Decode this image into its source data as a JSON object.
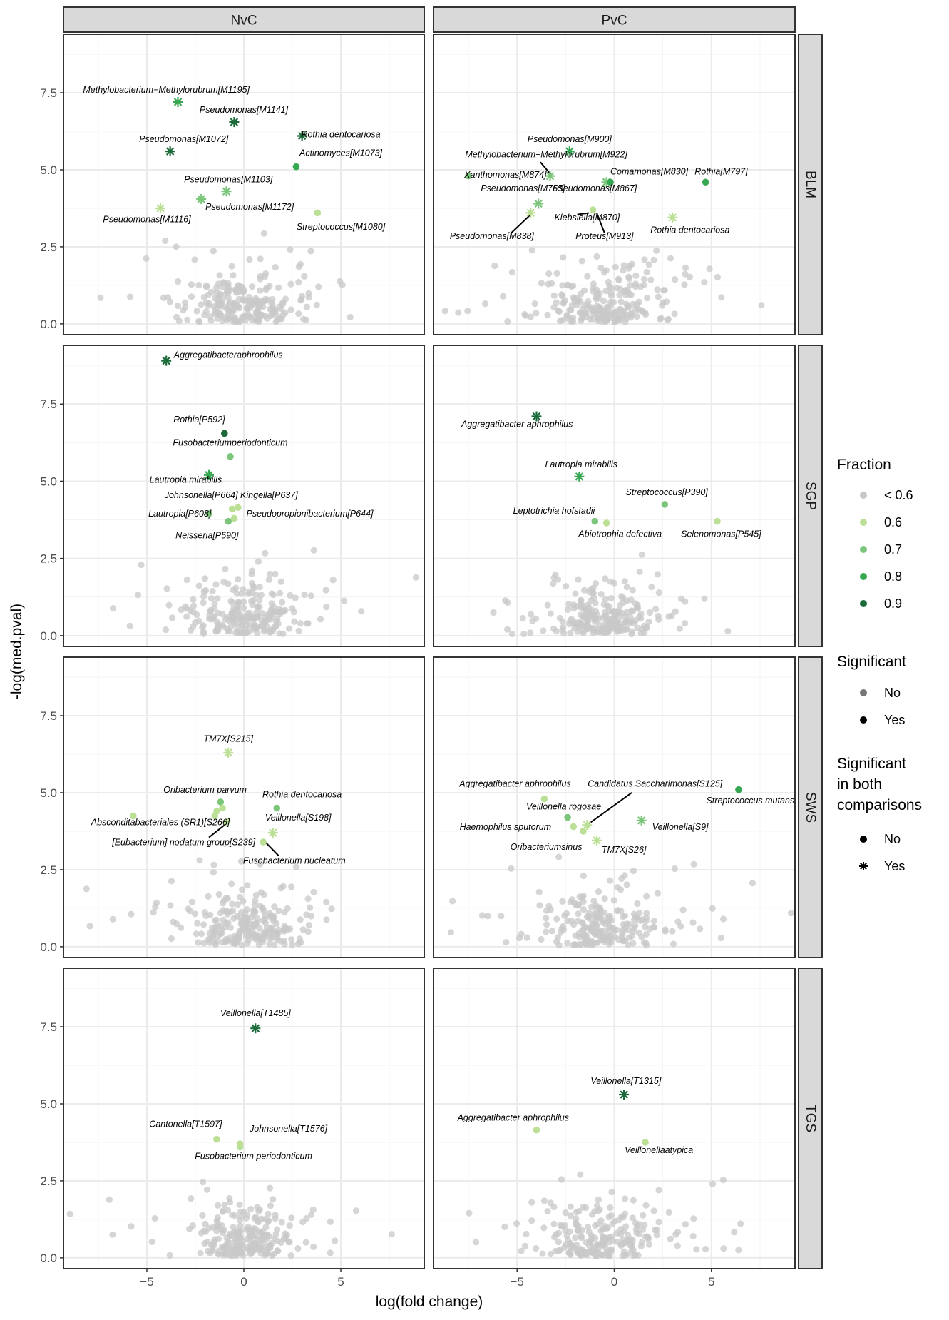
{
  "chart_data": {
    "type": "scatter",
    "title": "",
    "xlabel": "log(fold change)",
    "ylabel": "-log(med.pval)",
    "xlim": [
      -9.3,
      9.3
    ],
    "ylim": [
      -0.35,
      9.4
    ],
    "xticks": [
      -5,
      0,
      5
    ],
    "yticks": [
      0.0,
      2.5,
      5.0,
      7.5
    ],
    "xtick_labels": [
      "−5",
      "0",
      "5"
    ],
    "ytick_labels": [
      "0.0",
      "2.5",
      "5.0",
      "7.5"
    ],
    "columns": [
      "NvC",
      "PvC"
    ],
    "rows": [
      "BLM",
      "SGP",
      "SWS",
      "TGS"
    ],
    "grid": true,
    "colors": {
      "nonsig": "#c8c8c8",
      "f06": "#bcdf96",
      "f07": "#7cc67c",
      "f08": "#36a852",
      "f09": "#1b6a3a",
      "strip_bg": "#d9d9d9",
      "grid": "#ebebeb"
    },
    "legend": {
      "position": "right",
      "fraction_title": "Fraction",
      "fraction_items": [
        {
          "label": "< 0.6",
          "color": "nonsig"
        },
        {
          "label": "0.6",
          "color": "f06"
        },
        {
          "label": "0.7",
          "color": "f07"
        },
        {
          "label": "0.8",
          "color": "f08"
        },
        {
          "label": "0.9",
          "color": "f09"
        }
      ],
      "significant_title": "Significant",
      "significant_items": [
        "No",
        "Yes"
      ],
      "both_title_lines": [
        "Significant",
        "in both",
        "comparisons"
      ],
      "both_items": [
        {
          "label": "No",
          "shape": "dot"
        },
        {
          "label": "Yes",
          "shape": "star"
        }
      ]
    },
    "panels": [
      {
        "row": "BLM",
        "col": "NvC",
        "seed": 11,
        "points": [
          {
            "x": -3.4,
            "y": 7.2,
            "c": "f08",
            "s": "star"
          },
          {
            "x": -0.5,
            "y": 6.55,
            "c": "f09",
            "s": "star"
          },
          {
            "x": 3.0,
            "y": 6.1,
            "c": "f09",
            "s": "star"
          },
          {
            "x": -3.8,
            "y": 5.6,
            "c": "f09",
            "s": "star"
          },
          {
            "x": 2.7,
            "y": 5.1,
            "c": "f08",
            "s": "dot"
          },
          {
            "x": -0.9,
            "y": 4.3,
            "c": "f07",
            "s": "star"
          },
          {
            "x": -2.2,
            "y": 4.05,
            "c": "f07",
            "s": "star"
          },
          {
            "x": -4.3,
            "y": 3.75,
            "c": "f06",
            "s": "star"
          },
          {
            "x": 3.8,
            "y": 3.6,
            "c": "f06",
            "s": "dot"
          }
        ],
        "labels": [
          {
            "x": -4.0,
            "y": 7.5,
            "text": "Methylobacterium−Methylorubrum[M1195]"
          },
          {
            "x": 0.0,
            "y": 6.85,
            "text": "Pseudomonas[M1141]"
          },
          {
            "x": 5.0,
            "y": 6.05,
            "text": "Rothia dentocariosa"
          },
          {
            "x": -3.1,
            "y": 5.9,
            "text": "Pseudomonas[M1072]"
          },
          {
            "x": 5.0,
            "y": 5.45,
            "text": "Actinomyces[M1073]"
          },
          {
            "x": -0.8,
            "y": 4.6,
            "text": "Pseudomonas[M1103]"
          },
          {
            "x": 0.3,
            "y": 3.7,
            "text": "Pseudomonas[M1172]"
          },
          {
            "x": -5.0,
            "y": 3.3,
            "text": "Pseudomonas[M1116]"
          },
          {
            "x": 5.0,
            "y": 3.05,
            "text": "Streptococcus[M1080]"
          }
        ]
      },
      {
        "row": "BLM",
        "col": "PvC",
        "seed": 22,
        "points": [
          {
            "x": -2.3,
            "y": 5.6,
            "c": "f08",
            "s": "star"
          },
          {
            "x": -3.3,
            "y": 4.8,
            "c": "f07",
            "s": "star"
          },
          {
            "x": -7.5,
            "y": 4.8,
            "c": "f07",
            "s": "dot"
          },
          {
            "x": -0.4,
            "y": 4.6,
            "c": "f07",
            "s": "star"
          },
          {
            "x": -0.2,
            "y": 4.6,
            "c": "f08",
            "s": "dot"
          },
          {
            "x": 4.7,
            "y": 4.6,
            "c": "f08",
            "s": "dot"
          },
          {
            "x": -3.9,
            "y": 3.9,
            "c": "f07",
            "s": "star"
          },
          {
            "x": -4.3,
            "y": 3.6,
            "c": "f06",
            "s": "star"
          },
          {
            "x": -1.1,
            "y": 3.7,
            "c": "f06",
            "s": "dot"
          },
          {
            "x": 3.0,
            "y": 3.45,
            "c": "f06",
            "s": "star"
          }
        ],
        "labels": [
          {
            "x": -2.3,
            "y": 5.9,
            "text": "Pseudomonas[M900]"
          },
          {
            "x": -3.5,
            "y": 5.4,
            "text": "Methylobacterium−Methylorubrum[M922]"
          },
          {
            "x": -5.6,
            "y": 4.75,
            "text": "Xanthomonas[M874]"
          },
          {
            "x": 1.8,
            "y": 4.85,
            "text": "Comamonas[M830]"
          },
          {
            "x": 5.5,
            "y": 4.85,
            "text": "Rothia[M797]"
          },
          {
            "x": -4.7,
            "y": 4.3,
            "text": "Pseudomonas[M765]"
          },
          {
            "x": -1.0,
            "y": 4.3,
            "text": "Pseudomonas[M867]"
          },
          {
            "x": -1.4,
            "y": 3.35,
            "text": "Klebsiella[M870]"
          },
          {
            "x": 3.9,
            "y": 2.95,
            "text": "Rothia dentocariosa"
          },
          {
            "x": -6.3,
            "y": 2.75,
            "text": "Pseudomonas[M838]"
          },
          {
            "x": -0.5,
            "y": 2.75,
            "text": "Proteus[M913]"
          }
        ],
        "segments": [
          [
            -3.8,
            5.25,
            -3.2,
            4.8
          ],
          [
            -5.3,
            2.95,
            -4.3,
            3.55
          ],
          [
            -1.3,
            3.6,
            -1.9,
            3.55
          ],
          [
            -0.9,
            3.6,
            -0.5,
            2.95
          ]
        ]
      },
      {
        "row": "SGP",
        "col": "NvC",
        "seed": 33,
        "points": [
          {
            "x": -4.0,
            "y": 8.9,
            "c": "f09",
            "s": "star"
          },
          {
            "x": -1.0,
            "y": 6.55,
            "c": "f09",
            "s": "dot"
          },
          {
            "x": -0.7,
            "y": 5.8,
            "c": "f07",
            "s": "dot"
          },
          {
            "x": -1.8,
            "y": 5.2,
            "c": "f08",
            "s": "star"
          },
          {
            "x": -0.6,
            "y": 4.1,
            "c": "f06",
            "s": "dot"
          },
          {
            "x": -0.3,
            "y": 4.15,
            "c": "f06",
            "s": "dot"
          },
          {
            "x": -1.8,
            "y": 3.95,
            "c": "f07",
            "s": "dot"
          },
          {
            "x": -0.5,
            "y": 3.8,
            "c": "f06",
            "s": "dot"
          },
          {
            "x": -0.8,
            "y": 3.7,
            "c": "f07",
            "s": "dot"
          }
        ],
        "labels": [
          {
            "x": -0.8,
            "y": 9.0,
            "text": "Aggregatibacteraphrophilus"
          },
          {
            "x": -2.3,
            "y": 6.9,
            "text": "Rothia[P592]"
          },
          {
            "x": -0.7,
            "y": 6.15,
            "text": "Fusobacteriumperiodonticum"
          },
          {
            "x": -3.0,
            "y": 4.95,
            "text": "Lautropia mirabilis"
          },
          {
            "x": -2.2,
            "y": 4.45,
            "text": "Johnsonella[P664]"
          },
          {
            "x": 1.3,
            "y": 4.45,
            "text": "Kingella[P637]"
          },
          {
            "x": -3.3,
            "y": 3.85,
            "text": "Lautropia[P608]"
          },
          {
            "x": 3.4,
            "y": 3.85,
            "text": "Pseudopropionibacterium[P644]"
          },
          {
            "x": -1.9,
            "y": 3.15,
            "text": "Neisseria[P590]"
          }
        ]
      },
      {
        "row": "SGP",
        "col": "PvC",
        "seed": 44,
        "points": [
          {
            "x": -4.0,
            "y": 7.1,
            "c": "f09",
            "s": "star"
          },
          {
            "x": -1.8,
            "y": 5.15,
            "c": "f08",
            "s": "star"
          },
          {
            "x": 2.6,
            "y": 4.25,
            "c": "f07",
            "s": "dot"
          },
          {
            "x": -1.0,
            "y": 3.7,
            "c": "f07",
            "s": "dot"
          },
          {
            "x": -0.4,
            "y": 3.65,
            "c": "f06",
            "s": "dot"
          },
          {
            "x": 5.3,
            "y": 3.7,
            "c": "f06",
            "s": "dot"
          }
        ],
        "labels": [
          {
            "x": -5.0,
            "y": 6.75,
            "text": "Aggregatibacter aphrophilus"
          },
          {
            "x": -1.7,
            "y": 5.45,
            "text": "Lautropia mirabilis"
          },
          {
            "x": 2.7,
            "y": 4.55,
            "text": "Streptococcus[P390]"
          },
          {
            "x": -3.1,
            "y": 3.95,
            "text": "Leptotrichia hofstadii"
          },
          {
            "x": 0.3,
            "y": 3.2,
            "text": "Abiotrophia defectiva"
          },
          {
            "x": 5.5,
            "y": 3.2,
            "text": "Selenomonas[P545]"
          }
        ]
      },
      {
        "row": "SWS",
        "col": "NvC",
        "seed": 55,
        "points": [
          {
            "x": -0.8,
            "y": 6.3,
            "c": "f06",
            "s": "star"
          },
          {
            "x": -1.2,
            "y": 4.7,
            "c": "f07",
            "s": "dot"
          },
          {
            "x": -1.1,
            "y": 4.5,
            "c": "f06",
            "s": "dot"
          },
          {
            "x": -1.4,
            "y": 4.4,
            "c": "f06",
            "s": "dot"
          },
          {
            "x": -1.5,
            "y": 4.25,
            "c": "f06",
            "s": "dot"
          },
          {
            "x": 1.7,
            "y": 4.5,
            "c": "f07",
            "s": "dot"
          },
          {
            "x": -5.7,
            "y": 4.25,
            "c": "f06",
            "s": "dot"
          },
          {
            "x": -0.9,
            "y": 4.05,
            "c": "f06",
            "s": "dot"
          },
          {
            "x": 1.5,
            "y": 3.7,
            "c": "f06",
            "s": "star"
          },
          {
            "x": 1.0,
            "y": 3.4,
            "c": "f06",
            "s": "dot"
          }
        ],
        "labels": [
          {
            "x": -0.8,
            "y": 6.65,
            "text": "TM7X[S215]"
          },
          {
            "x": -2.0,
            "y": 5.0,
            "text": "Oribacterium parvum"
          },
          {
            "x": 3.0,
            "y": 4.85,
            "text": "Rothia dentocariosa"
          },
          {
            "x": -4.3,
            "y": 3.95,
            "text": "Absconditabacteriales (SR1)[S266]"
          },
          {
            "x": 2.8,
            "y": 4.1,
            "text": "Veillonella[S198]"
          },
          {
            "x": -3.1,
            "y": 3.3,
            "text": "[Eubacterium] nodatum group[S239]"
          },
          {
            "x": 2.6,
            "y": 2.7,
            "text": "Fusobacterium nucleatum"
          }
        ],
        "segments": [
          [
            -1.8,
            3.55,
            -0.9,
            4.0
          ],
          [
            1.8,
            2.95,
            1.1,
            3.4
          ]
        ]
      },
      {
        "row": "SWS",
        "col": "PvC",
        "seed": 66,
        "points": [
          {
            "x": 6.4,
            "y": 5.1,
            "c": "f08",
            "s": "dot"
          },
          {
            "x": -3.6,
            "y": 4.8,
            "c": "f06",
            "s": "dot"
          },
          {
            "x": -2.4,
            "y": 4.2,
            "c": "f07",
            "s": "dot"
          },
          {
            "x": 1.4,
            "y": 4.1,
            "c": "f07",
            "s": "star"
          },
          {
            "x": -1.4,
            "y": 3.95,
            "c": "f06",
            "s": "star"
          },
          {
            "x": -2.1,
            "y": 3.9,
            "c": "f06",
            "s": "dot"
          },
          {
            "x": -1.6,
            "y": 3.75,
            "c": "f06",
            "s": "dot"
          },
          {
            "x": -0.9,
            "y": 3.45,
            "c": "f06",
            "s": "star"
          }
        ],
        "labels": [
          {
            "x": -5.1,
            "y": 5.2,
            "text": "Aggregatibacter aphrophilus"
          },
          {
            "x": 2.1,
            "y": 5.2,
            "text": "Candidatus Saccharimonas[S125]"
          },
          {
            "x": 7.0,
            "y": 4.65,
            "text": "Streptococcus mutans"
          },
          {
            "x": -2.6,
            "y": 4.45,
            "text": "Veillonella rogosae"
          },
          {
            "x": 3.4,
            "y": 3.8,
            "text": "Veillonella[S9]"
          },
          {
            "x": -5.6,
            "y": 3.8,
            "text": "Haemophilus sputorum"
          },
          {
            "x": -3.5,
            "y": 3.15,
            "text": "Oribacteriumsinus"
          },
          {
            "x": 0.5,
            "y": 3.05,
            "text": "TM7X[S26]"
          }
        ],
        "segments": [
          [
            0.9,
            5.0,
            -1.3,
            4.0
          ]
        ]
      },
      {
        "row": "TGS",
        "col": "NvC",
        "seed": 77,
        "points": [
          {
            "x": 0.6,
            "y": 7.45,
            "c": "f09",
            "s": "star"
          },
          {
            "x": -1.4,
            "y": 3.85,
            "c": "f06",
            "s": "dot"
          },
          {
            "x": -0.2,
            "y": 3.7,
            "c": "f06",
            "s": "dot"
          },
          {
            "x": -0.2,
            "y": 3.6,
            "c": "f06",
            "s": "dot"
          }
        ],
        "labels": [
          {
            "x": 0.6,
            "y": 7.85,
            "text": "Veillonella[T1485]"
          },
          {
            "x": -3.0,
            "y": 4.25,
            "text": "Cantonella[T1597]"
          },
          {
            "x": 2.3,
            "y": 4.1,
            "text": "Johnsonella[T1576]"
          },
          {
            "x": 0.5,
            "y": 3.2,
            "text": "Fusobacterium periodonticum"
          }
        ]
      },
      {
        "row": "TGS",
        "col": "PvC",
        "seed": 88,
        "points": [
          {
            "x": 0.5,
            "y": 5.3,
            "c": "f09",
            "s": "star"
          },
          {
            "x": -4.0,
            "y": 4.15,
            "c": "f06",
            "s": "dot"
          },
          {
            "x": 1.6,
            "y": 3.75,
            "c": "f06",
            "s": "dot"
          }
        ],
        "labels": [
          {
            "x": 0.6,
            "y": 5.65,
            "text": "Veillonella[T1315]"
          },
          {
            "x": -5.2,
            "y": 4.45,
            "text": "Aggregatibacter aphrophilus"
          },
          {
            "x": 2.3,
            "y": 3.4,
            "text": "Veillonellaatypica"
          }
        ]
      }
    ]
  }
}
